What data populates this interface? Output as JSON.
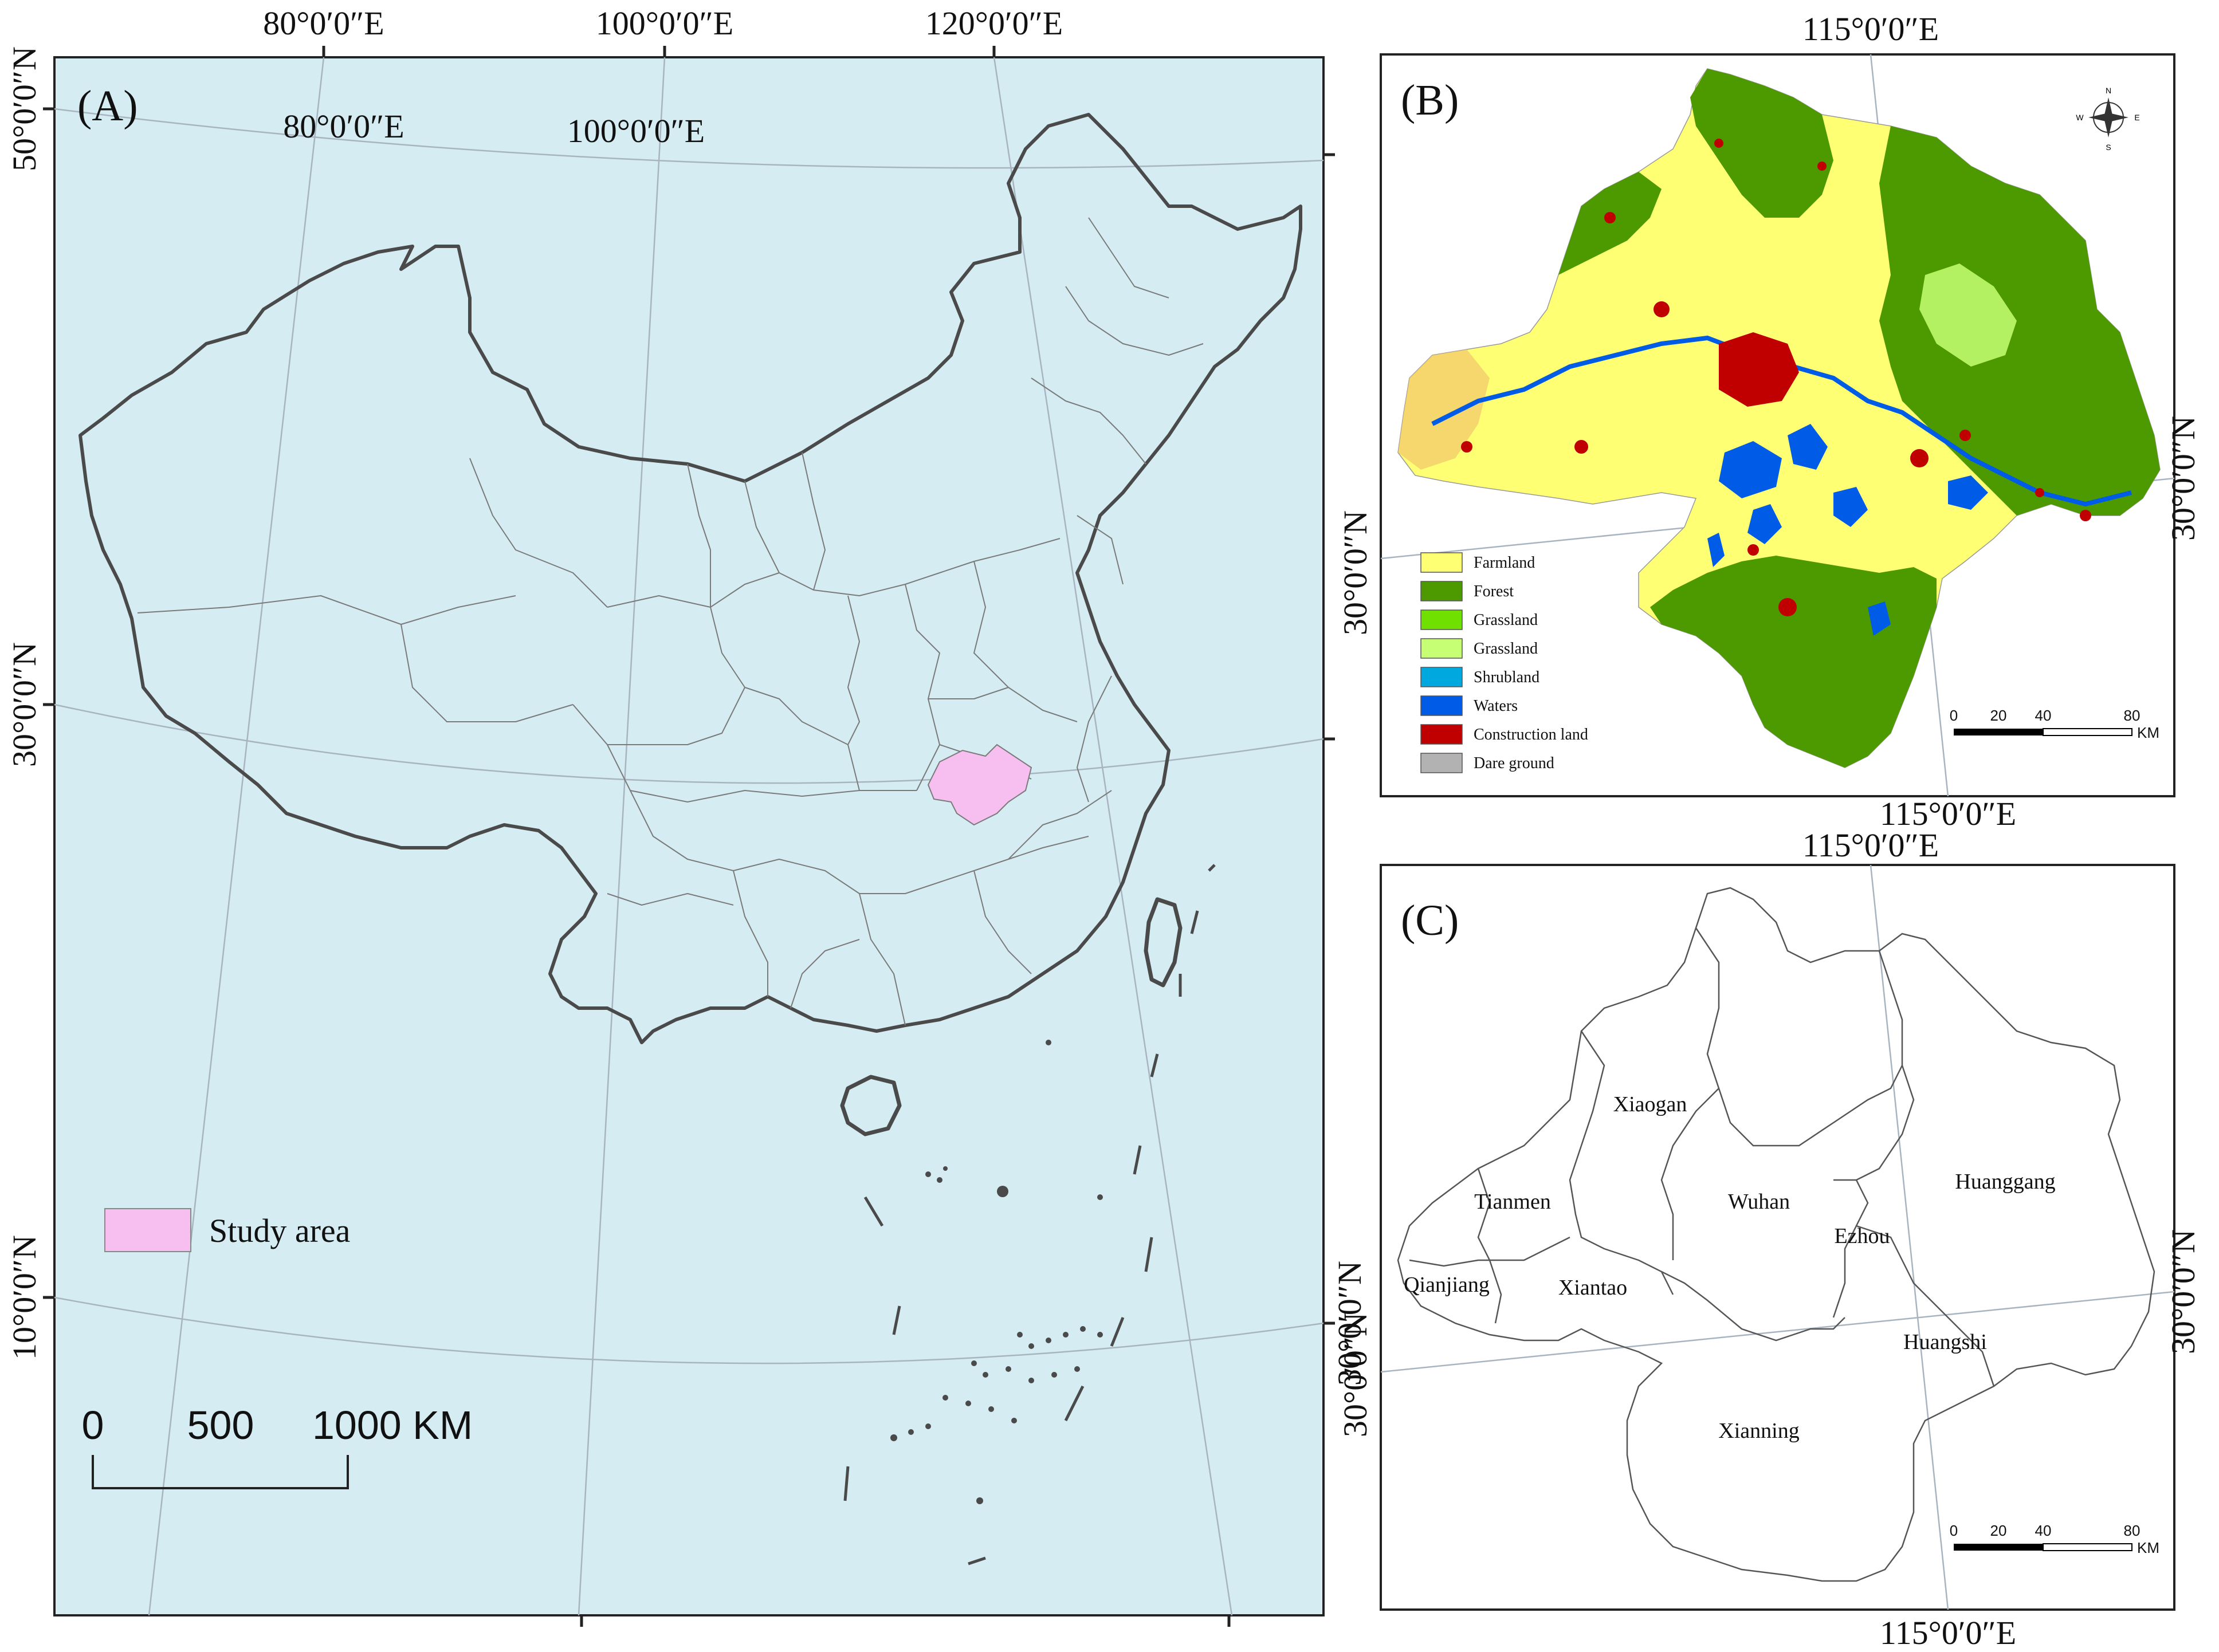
{
  "panel_a": {
    "label": "(A)",
    "top_lon_labels": [
      "80°0′0″E",
      "100°0′0″E",
      "120°0′0″E"
    ],
    "inner_lon_labels": [
      "80°0′0″E",
      "100°0′0″E"
    ],
    "left_lat_labels": [
      "50°0′0″N",
      "30°0′0″N",
      "10°0′0″N"
    ],
    "right_lat_label": "30°0′0″N",
    "legend": {
      "label": "Study area",
      "color": "#f7bff0"
    },
    "scale_bar": {
      "ticks": [
        "0",
        "500",
        "1000 KM"
      ]
    },
    "background_color": "#d4ecf2"
  },
  "panel_b": {
    "label": "(B)",
    "top_lon_label": "115°0′0″E",
    "bottom_lon_label": "115°0′0″E",
    "left_lat_label": "30°0′0″N",
    "right_lat_label": "30°0′0″N",
    "compass": {
      "n": "N",
      "s": "S",
      "e": "E",
      "w": "W"
    },
    "legend": [
      {
        "label": "Farmland",
        "color": "#ffff73"
      },
      {
        "label": "Forest",
        "color": "#4c9900"
      },
      {
        "label": "Grassland",
        "color": "#70e000"
      },
      {
        "label": "Grassland",
        "color": "#c6ff73"
      },
      {
        "label": "Shrubland",
        "color": "#00a8e0"
      },
      {
        "label": "Waters",
        "color": "#005ce6"
      },
      {
        "label": "Construction land",
        "color": "#c00000"
      },
      {
        "label": "Dare ground",
        "color": "#b2b2b2"
      }
    ],
    "scale_bar": {
      "ticks": [
        "0",
        "20",
        "40",
        "80"
      ],
      "unit": "KM"
    }
  },
  "panel_c": {
    "label": "(C)",
    "top_lon_label": "115°0′0″E",
    "bottom_lon_label": "115°0′0″E",
    "left_lat_label": "30°0′0″N",
    "right_lat_label": "30°0′0″N",
    "cities": [
      "Xiaogan",
      "Tianmen",
      "Wuhan",
      "Huanggang",
      "Ezhou",
      "Qianjiang",
      "Xiantao",
      "Huangshi",
      "Xianning"
    ],
    "scale_bar": {
      "ticks": [
        "0",
        "20",
        "40",
        "80"
      ],
      "unit": "KM"
    }
  }
}
